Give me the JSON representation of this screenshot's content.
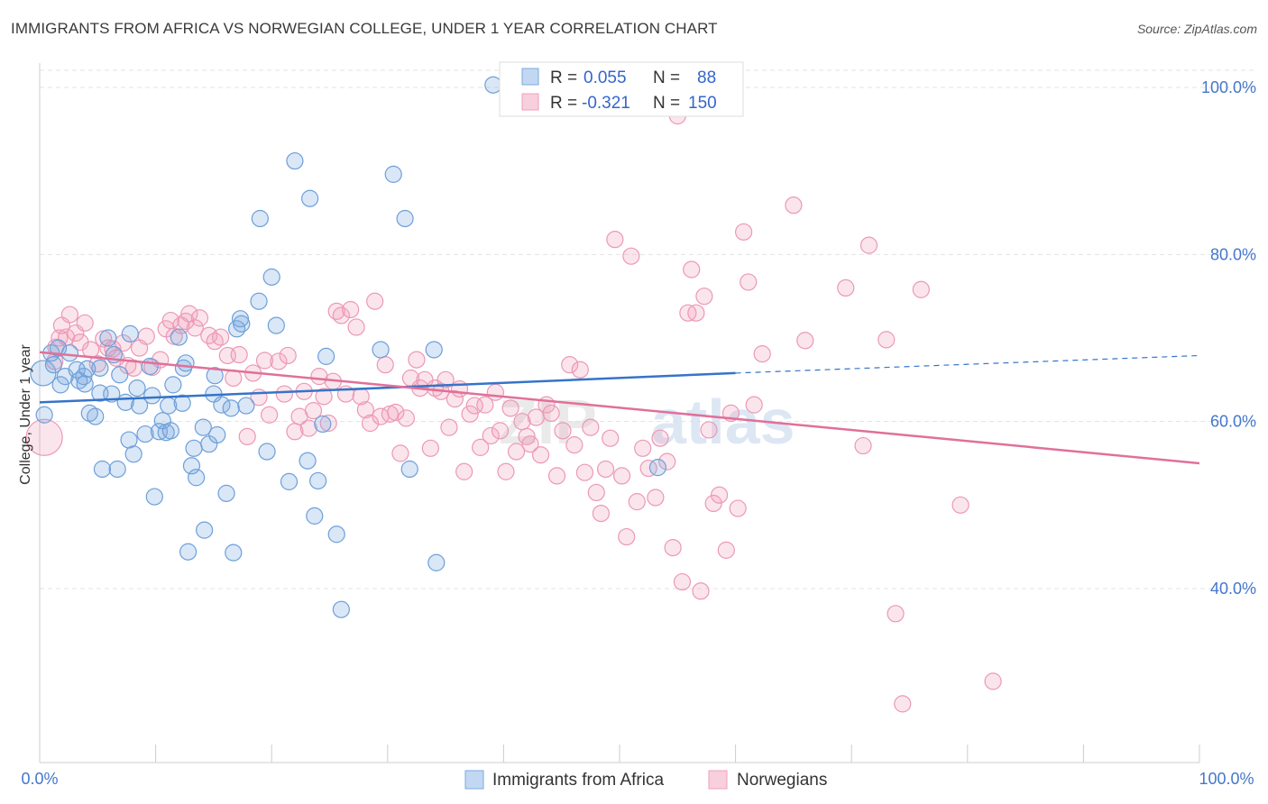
{
  "title": "IMMIGRANTS FROM AFRICA VS NORWEGIAN COLLEGE, UNDER 1 YEAR CORRELATION CHART",
  "source": "Source: ZipAtlas.com",
  "watermark": {
    "a": "ZIP",
    "b": "atlas"
  },
  "colors": {
    "africa": "#7aaae0",
    "africa_line": "#3574c9",
    "norwegians": "#f0a0ba",
    "norwegians_line": "#e0709a",
    "tick": "#4477cc"
  },
  "legend_box": {
    "rows": [
      {
        "r_label": "R =",
        "r_value": "0.055",
        "n_label": "N =",
        "n_value": "88"
      },
      {
        "r_label": "R =",
        "r_value": "-0.321",
        "n_label": "N =",
        "n_value": "150"
      }
    ]
  },
  "chart_data": {
    "type": "scatter",
    "title": "IMMIGRANTS FROM AFRICA VS NORWEGIAN COLLEGE, UNDER 1 YEAR CORRELATION CHART",
    "xlabel": "",
    "ylabel": "College, Under 1 year",
    "xlim": [
      0,
      100
    ],
    "ylim": [
      20,
      102
    ],
    "x_tick_labels": [
      "0.0%",
      "100.0%"
    ],
    "y_ticks": [
      40,
      60,
      80,
      100
    ],
    "y_tick_labels": [
      "40.0%",
      "60.0%",
      "80.0%",
      "100.0%"
    ],
    "grid": true,
    "legend_position": "top-center",
    "series": [
      {
        "name": "Immigrants from Africa",
        "color": "#7aaae0",
        "trend": {
          "x0": 0,
          "y0": 62.3,
          "x1": 60,
          "y1": 65.8,
          "dashed_to_x": 100,
          "dashed_to_y": 67.9
        },
        "points": [
          [
            0.3,
            65.8
          ],
          [
            0.4,
            60.8
          ],
          [
            1.0,
            68.2
          ],
          [
            1.2,
            66.8
          ],
          [
            1.6,
            68.8
          ],
          [
            1.8,
            64.4
          ],
          [
            2.2,
            65.4
          ],
          [
            2.6,
            68.2
          ],
          [
            3.2,
            66.2
          ],
          [
            3.4,
            64.9
          ],
          [
            3.8,
            65.4
          ],
          [
            3.9,
            64.5
          ],
          [
            4.1,
            66.3
          ],
          [
            4.3,
            61.0
          ],
          [
            4.8,
            60.6
          ],
          [
            5.2,
            66.4
          ],
          [
            5.2,
            63.4
          ],
          [
            5.4,
            54.3
          ],
          [
            5.9,
            70.0
          ],
          [
            6.2,
            63.3
          ],
          [
            6.4,
            68.0
          ],
          [
            6.7,
            54.3
          ],
          [
            6.9,
            65.6
          ],
          [
            7.4,
            62.3
          ],
          [
            7.7,
            57.8
          ],
          [
            7.8,
            70.5
          ],
          [
            8.1,
            56.1
          ],
          [
            8.4,
            64.0
          ],
          [
            8.6,
            61.9
          ],
          [
            9.1,
            58.5
          ],
          [
            9.5,
            66.6
          ],
          [
            9.7,
            63.1
          ],
          [
            9.9,
            51.0
          ],
          [
            10.3,
            58.8
          ],
          [
            10.6,
            60.1
          ],
          [
            10.9,
            58.7
          ],
          [
            11.1,
            61.9
          ],
          [
            11.3,
            58.9
          ],
          [
            11.5,
            64.4
          ],
          [
            12.0,
            70.1
          ],
          [
            12.3,
            62.2
          ],
          [
            12.4,
            66.4
          ],
          [
            12.6,
            67.0
          ],
          [
            12.8,
            44.4
          ],
          [
            13.1,
            54.7
          ],
          [
            13.3,
            56.8
          ],
          [
            13.5,
            53.3
          ],
          [
            14.1,
            59.3
          ],
          [
            14.2,
            47.0
          ],
          [
            14.6,
            57.3
          ],
          [
            15.0,
            63.3
          ],
          [
            15.1,
            65.5
          ],
          [
            15.3,
            58.4
          ],
          [
            15.7,
            62.0
          ],
          [
            16.1,
            51.4
          ],
          [
            16.5,
            61.6
          ],
          [
            16.7,
            44.3
          ],
          [
            17.0,
            71.1
          ],
          [
            17.3,
            72.3
          ],
          [
            17.4,
            71.7
          ],
          [
            17.8,
            61.9
          ],
          [
            18.9,
            74.4
          ],
          [
            19.0,
            84.3
          ],
          [
            19.6,
            56.4
          ],
          [
            20.0,
            77.3
          ],
          [
            20.4,
            71.5
          ],
          [
            21.5,
            52.8
          ],
          [
            22.0,
            91.2
          ],
          [
            23.1,
            55.3
          ],
          [
            23.3,
            86.7
          ],
          [
            23.7,
            48.7
          ],
          [
            24.0,
            52.9
          ],
          [
            24.4,
            59.7
          ],
          [
            24.7,
            67.8
          ],
          [
            25.6,
            46.5
          ],
          [
            26.0,
            37.5
          ],
          [
            29.4,
            68.6
          ],
          [
            30.5,
            89.6
          ],
          [
            31.5,
            84.3
          ],
          [
            31.9,
            54.3
          ],
          [
            34.0,
            68.6
          ],
          [
            34.2,
            43.1
          ],
          [
            39.1,
            100.3
          ],
          [
            53.3,
            54.5
          ]
        ]
      },
      {
        "name": "Norwegians",
        "color": "#f0a0ba",
        "trend": {
          "x0": 0,
          "y0": 68.3,
          "x1": 100,
          "y1": 55.0
        },
        "points": [
          [
            0.4,
            58.1
          ],
          [
            1.3,
            67.2
          ],
          [
            1.4,
            68.9
          ],
          [
            1.7,
            70.0
          ],
          [
            1.9,
            71.5
          ],
          [
            2.3,
            70.1
          ],
          [
            2.6,
            72.8
          ],
          [
            3.1,
            70.6
          ],
          [
            3.5,
            69.5
          ],
          [
            3.9,
            71.8
          ],
          [
            4.4,
            68.6
          ],
          [
            5.0,
            66.9
          ],
          [
            5.5,
            69.9
          ],
          [
            5.9,
            68.8
          ],
          [
            6.3,
            68.7
          ],
          [
            6.6,
            67.6
          ],
          [
            7.2,
            69.4
          ],
          [
            7.6,
            66.7
          ],
          [
            8.1,
            66.4
          ],
          [
            8.6,
            68.8
          ],
          [
            9.2,
            70.2
          ],
          [
            9.7,
            66.5
          ],
          [
            10.4,
            67.4
          ],
          [
            10.9,
            71.1
          ],
          [
            11.3,
            72.1
          ],
          [
            11.6,
            70.2
          ],
          [
            12.2,
            71.5
          ],
          [
            12.6,
            72.0
          ],
          [
            12.9,
            72.9
          ],
          [
            13.4,
            71.2
          ],
          [
            13.8,
            72.4
          ],
          [
            14.6,
            70.3
          ],
          [
            15.1,
            69.6
          ],
          [
            15.6,
            70.1
          ],
          [
            16.2,
            67.9
          ],
          [
            16.7,
            65.2
          ],
          [
            17.2,
            68.0
          ],
          [
            17.9,
            58.2
          ],
          [
            18.4,
            65.8
          ],
          [
            18.9,
            62.9
          ],
          [
            19.4,
            67.3
          ],
          [
            19.8,
            60.8
          ],
          [
            20.6,
            67.2
          ],
          [
            21.1,
            63.3
          ],
          [
            21.4,
            67.9
          ],
          [
            22.0,
            58.8
          ],
          [
            22.4,
            60.6
          ],
          [
            22.8,
            63.6
          ],
          [
            23.2,
            59.2
          ],
          [
            23.6,
            61.3
          ],
          [
            24.1,
            65.4
          ],
          [
            24.5,
            63.0
          ],
          [
            24.9,
            59.8
          ],
          [
            25.3,
            64.8
          ],
          [
            25.6,
            73.2
          ],
          [
            26.0,
            72.7
          ],
          [
            26.4,
            63.3
          ],
          [
            26.8,
            73.4
          ],
          [
            27.3,
            71.3
          ],
          [
            27.7,
            63.0
          ],
          [
            28.1,
            61.4
          ],
          [
            28.5,
            59.8
          ],
          [
            28.9,
            74.4
          ],
          [
            29.4,
            60.6
          ],
          [
            29.8,
            66.8
          ],
          [
            30.2,
            60.9
          ],
          [
            30.7,
            61.1
          ],
          [
            31.1,
            56.2
          ],
          [
            31.6,
            60.4
          ],
          [
            32.0,
            65.2
          ],
          [
            32.5,
            67.4
          ],
          [
            32.8,
            64.0
          ],
          [
            33.2,
            65.0
          ],
          [
            33.7,
            56.8
          ],
          [
            34.1,
            64.0
          ],
          [
            34.6,
            63.6
          ],
          [
            35.0,
            65.0
          ],
          [
            35.3,
            59.3
          ],
          [
            35.8,
            62.7
          ],
          [
            36.2,
            63.9
          ],
          [
            36.6,
            54.0
          ],
          [
            37.1,
            60.9
          ],
          [
            37.5,
            61.9
          ],
          [
            38.0,
            56.9
          ],
          [
            38.4,
            62.0
          ],
          [
            38.9,
            58.3
          ],
          [
            39.3,
            63.5
          ],
          [
            39.7,
            58.9
          ],
          [
            40.2,
            54.0
          ],
          [
            40.6,
            61.6
          ],
          [
            41.1,
            56.4
          ],
          [
            41.6,
            60.0
          ],
          [
            42.0,
            58.2
          ],
          [
            42.3,
            57.3
          ],
          [
            42.8,
            60.5
          ],
          [
            43.2,
            56.0
          ],
          [
            43.7,
            62.0
          ],
          [
            44.1,
            61.0
          ],
          [
            44.6,
            53.5
          ],
          [
            45.1,
            58.9
          ],
          [
            45.7,
            66.8
          ],
          [
            46.1,
            57.2
          ],
          [
            46.6,
            66.2
          ],
          [
            47.0,
            53.9
          ],
          [
            47.5,
            59.3
          ],
          [
            48.0,
            51.5
          ],
          [
            48.4,
            49.0
          ],
          [
            48.8,
            54.3
          ],
          [
            49.2,
            58.0
          ],
          [
            49.6,
            81.8
          ],
          [
            50.2,
            53.5
          ],
          [
            50.6,
            46.2
          ],
          [
            51.0,
            79.8
          ],
          [
            51.5,
            50.4
          ],
          [
            52.0,
            56.8
          ],
          [
            52.5,
            54.4
          ],
          [
            53.1,
            50.9
          ],
          [
            53.5,
            58.0
          ],
          [
            54.1,
            55.2
          ],
          [
            54.6,
            44.9
          ],
          [
            55.0,
            96.6
          ],
          [
            55.4,
            40.8
          ],
          [
            55.9,
            73.0
          ],
          [
            56.2,
            78.2
          ],
          [
            56.6,
            73.0
          ],
          [
            57.0,
            39.7
          ],
          [
            57.3,
            75.0
          ],
          [
            57.7,
            59.0
          ],
          [
            58.1,
            50.2
          ],
          [
            58.6,
            51.2
          ],
          [
            59.2,
            44.6
          ],
          [
            59.6,
            61.0
          ],
          [
            60.2,
            49.6
          ],
          [
            60.7,
            82.7
          ],
          [
            61.1,
            76.7
          ],
          [
            61.6,
            62.0
          ],
          [
            62.3,
            68.1
          ],
          [
            65.0,
            85.9
          ],
          [
            66.0,
            69.7
          ],
          [
            69.5,
            76.0
          ],
          [
            71.0,
            57.1
          ],
          [
            71.5,
            81.1
          ],
          [
            73.0,
            69.8
          ],
          [
            73.8,
            37.0
          ],
          [
            74.4,
            26.2
          ],
          [
            76.0,
            75.8
          ],
          [
            79.4,
            50.0
          ],
          [
            82.2,
            28.9
          ]
        ]
      }
    ]
  }
}
